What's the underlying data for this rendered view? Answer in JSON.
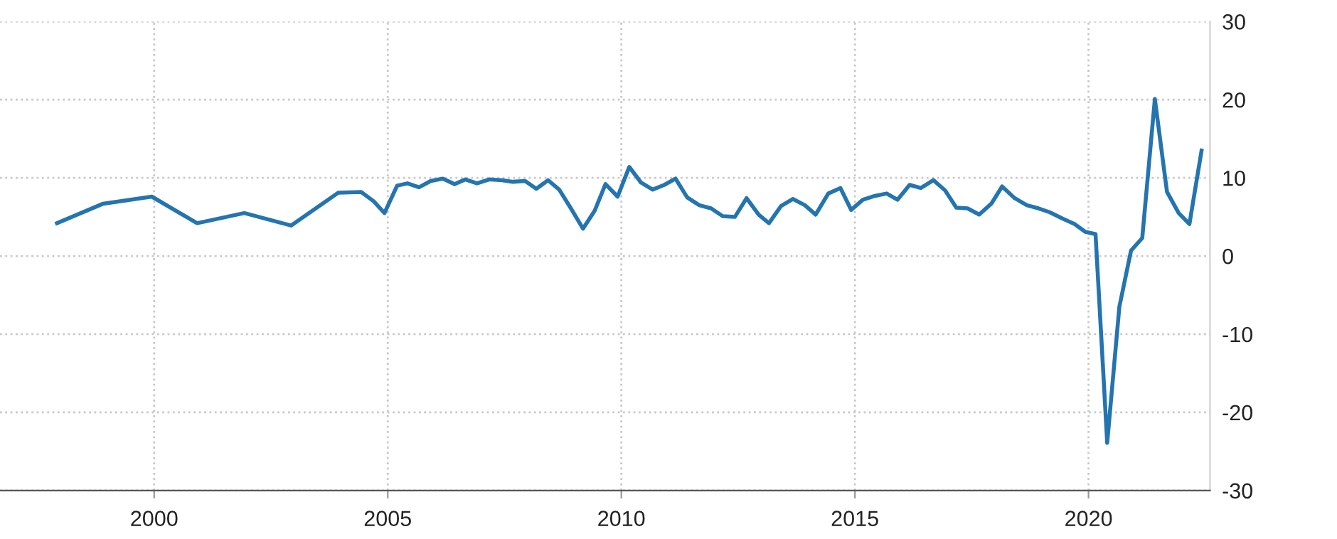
{
  "chart_data": {
    "type": "line",
    "x": [
      1997.92,
      1998.91,
      1999.95,
      2000.92,
      2001.93,
      2002.93,
      2003.94,
      2004.43,
      2004.7,
      2004.93,
      2005.2,
      2005.42,
      2005.67,
      2005.92,
      2006.18,
      2006.43,
      2006.66,
      2006.91,
      2007.17,
      2007.45,
      2007.68,
      2007.94,
      2008.18,
      2008.43,
      2008.67,
      2008.92,
      2009.18,
      2009.43,
      2009.66,
      2009.92,
      2010.17,
      2010.42,
      2010.67,
      2010.92,
      2011.16,
      2011.41,
      2011.67,
      2011.92,
      2012.17,
      2012.43,
      2012.68,
      2012.94,
      2013.16,
      2013.42,
      2013.67,
      2013.93,
      2014.16,
      2014.43,
      2014.69,
      2014.92,
      2015.17,
      2015.43,
      2015.68,
      2015.91,
      2016.17,
      2016.41,
      2016.68,
      2016.93,
      2017.17,
      2017.41,
      2017.66,
      2017.92,
      2018.15,
      2018.42,
      2018.68,
      2018.93,
      2019.17,
      2019.44,
      2019.7,
      2019.93,
      2020.15,
      2020.4,
      2020.66,
      2020.91,
      2021.15,
      2021.42,
      2021.68,
      2021.93,
      2022.16,
      2022.42
    ],
    "series": [
      {
        "color": "#2474b0",
        "values": [
          4.2,
          6.7,
          7.6,
          4.2,
          5.5,
          3.9,
          8.1,
          8.2,
          7.0,
          5.5,
          9.0,
          9.3,
          8.8,
          9.6,
          9.9,
          9.2,
          9.8,
          9.3,
          9.8,
          9.7,
          9.5,
          9.6,
          8.6,
          9.7,
          8.5,
          6.1,
          3.5,
          5.8,
          9.2,
          7.6,
          11.4,
          9.4,
          8.5,
          9.1,
          9.9,
          7.5,
          6.5,
          6.1,
          5.1,
          5.0,
          7.4,
          5.3,
          4.2,
          6.4,
          7.3,
          6.5,
          5.3,
          8.0,
          8.7,
          5.9,
          7.2,
          7.7,
          8.0,
          7.2,
          9.1,
          8.7,
          9.7,
          8.4,
          6.2,
          6.1,
          5.3,
          6.7,
          8.9,
          7.4,
          6.5,
          6.1,
          5.6,
          4.8,
          4.1,
          3.1,
          2.8,
          -23.9,
          -6.5,
          0.7,
          2.3,
          20.1,
          8.2,
          5.5,
          4.1,
          13.5
        ]
      }
    ],
    "xlim": [
      1996.7,
      2022.6
    ],
    "xticks": [
      2000,
      2005,
      2010,
      2015,
      2020
    ],
    "ylim": [
      -30,
      30
    ],
    "yticks": [
      -30,
      -20,
      -10,
      0,
      10,
      20,
      30
    ],
    "grid": true,
    "legend": false,
    "marker": "none",
    "line_style": "solid"
  }
}
